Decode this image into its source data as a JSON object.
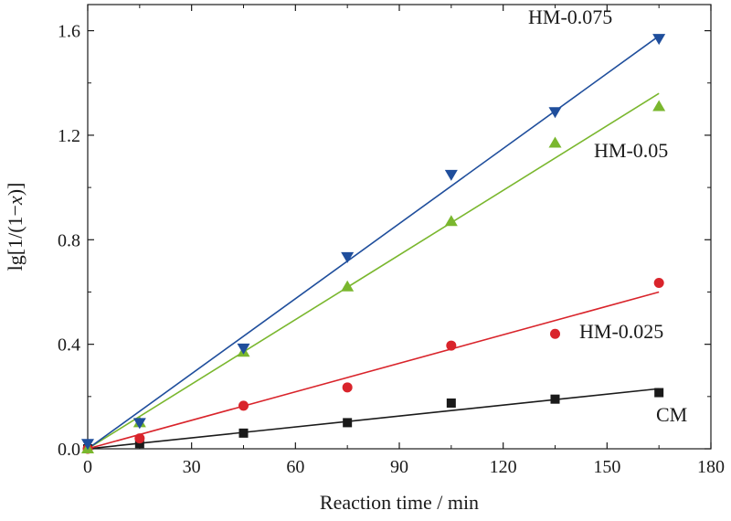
{
  "chart_data": {
    "type": "scatter",
    "xlabel": "Reaction time / min",
    "ylabel": "lg[1/(1−x)]",
    "xlim": [
      0,
      180
    ],
    "ylim": [
      0,
      1.7
    ],
    "xticks": [
      0,
      30,
      60,
      90,
      120,
      150,
      180
    ],
    "xtick_labels": [
      "0",
      "30",
      "60",
      "90",
      "120",
      "150",
      "180"
    ],
    "yticks": [
      0,
      0.4,
      0.8,
      1.2,
      1.6
    ],
    "ytick_labels": [
      "0.0",
      "0.4",
      "0.8",
      "1.2",
      "1.6"
    ],
    "grid": false,
    "series": [
      {
        "name": "CM",
        "color": "#1a1a1a",
        "marker": "square",
        "x": [
          0,
          15,
          45,
          75,
          105,
          135,
          165
        ],
        "y": [
          0.0,
          0.02,
          0.06,
          0.1,
          0.175,
          0.19,
          0.215
        ],
        "fit": {
          "x": [
            0,
            165
          ],
          "y": [
            0.0,
            0.23
          ]
        }
      },
      {
        "name": "HM-0.025",
        "color": "#d9242b",
        "marker": "circle",
        "x": [
          0,
          15,
          45,
          75,
          105,
          135,
          165
        ],
        "y": [
          0.0,
          0.04,
          0.165,
          0.235,
          0.395,
          0.44,
          0.635
        ],
        "fit": {
          "x": [
            0,
            165
          ],
          "y": [
            0.0,
            0.6
          ]
        }
      },
      {
        "name": "HM-0.05",
        "color": "#7ab72e",
        "marker": "triangle-up",
        "x": [
          0,
          15,
          45,
          75,
          105,
          135,
          165
        ],
        "y": [
          0.0,
          0.1,
          0.37,
          0.62,
          0.87,
          1.17,
          1.31
        ],
        "fit": {
          "x": [
            0,
            165
          ],
          "y": [
            0.0,
            1.36
          ]
        }
      },
      {
        "name": "HM-0.075",
        "color": "#1f4e9c",
        "marker": "triangle-down",
        "x": [
          0,
          15,
          45,
          75,
          105,
          135,
          165
        ],
        "y": [
          0.02,
          0.1,
          0.385,
          0.735,
          1.05,
          1.29,
          1.57
        ],
        "fit": {
          "x": [
            0,
            165
          ],
          "y": [
            0.0,
            1.58
          ]
        }
      }
    ]
  }
}
